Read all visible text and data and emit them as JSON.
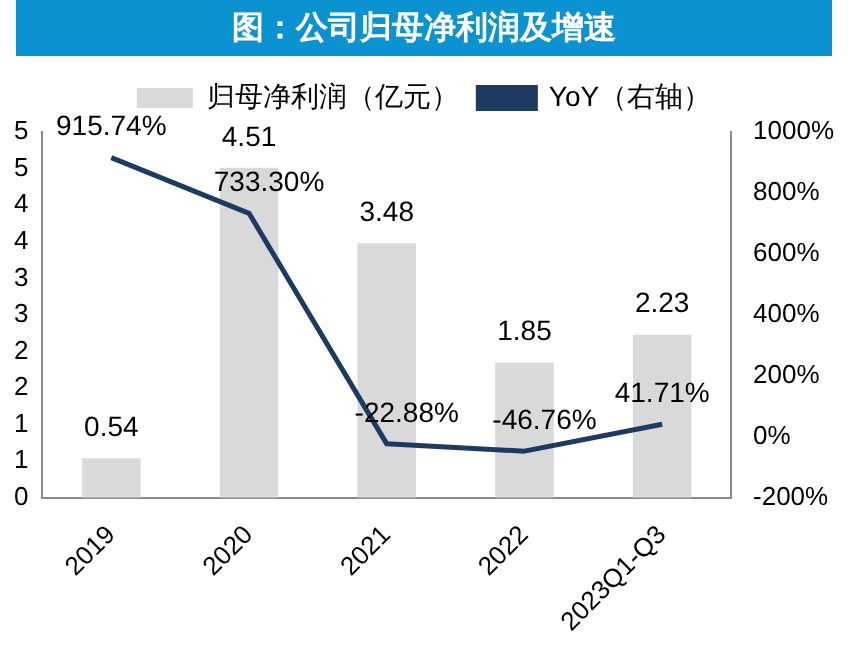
{
  "chart_data": {
    "type": "bar",
    "title": "图：公司归母净利润及增速",
    "categories": [
      "2019",
      "2020",
      "2021",
      "2022",
      "2023Q1-Q3"
    ],
    "series": [
      {
        "name": "归母净利润（亿元）",
        "color": "#d9d9d9",
        "values": [
          0.54,
          4.51,
          3.48,
          1.85,
          2.23
        ],
        "value_labels": [
          "0.54",
          "4.51",
          "3.48",
          "1.85",
          "2.23"
        ]
      },
      {
        "name": "YoY（右轴）",
        "type": "line",
        "axis": "y2",
        "color": "#1f3a60",
        "values": [
          915.74,
          733.3,
          -22.88,
          -46.76,
          41.71
        ],
        "value_labels": [
          "915.74%",
          "733.30%",
          "-22.88%",
          "-46.76%",
          "41.71%"
        ]
      }
    ],
    "ylim": [
      0,
      5
    ],
    "yticks": [
      0,
      {
        "value": 0.5,
        "label": "1"
      },
      1,
      {
        "value": 1.5,
        "label": "2"
      },
      2,
      {
        "value": 2.5,
        "label": "3"
      },
      3,
      {
        "value": 3.5,
        "label": "4"
      },
      4,
      {
        "value": 4.5,
        "label": "5"
      },
      5
    ],
    "y2lim": [
      -200,
      1000
    ],
    "y2ticks": [
      {
        "value": -200,
        "label": "-200%"
      },
      {
        "value": 0,
        "label": "0%"
      },
      {
        "value": 200,
        "label": "200%"
      },
      {
        "value": 400,
        "label": "400%"
      },
      {
        "value": 600,
        "label": "600%"
      },
      {
        "value": 800,
        "label": "800%"
      },
      {
        "value": 1000,
        "label": "1000%"
      }
    ],
    "legend": "top",
    "grid": false,
    "marker": "none"
  }
}
